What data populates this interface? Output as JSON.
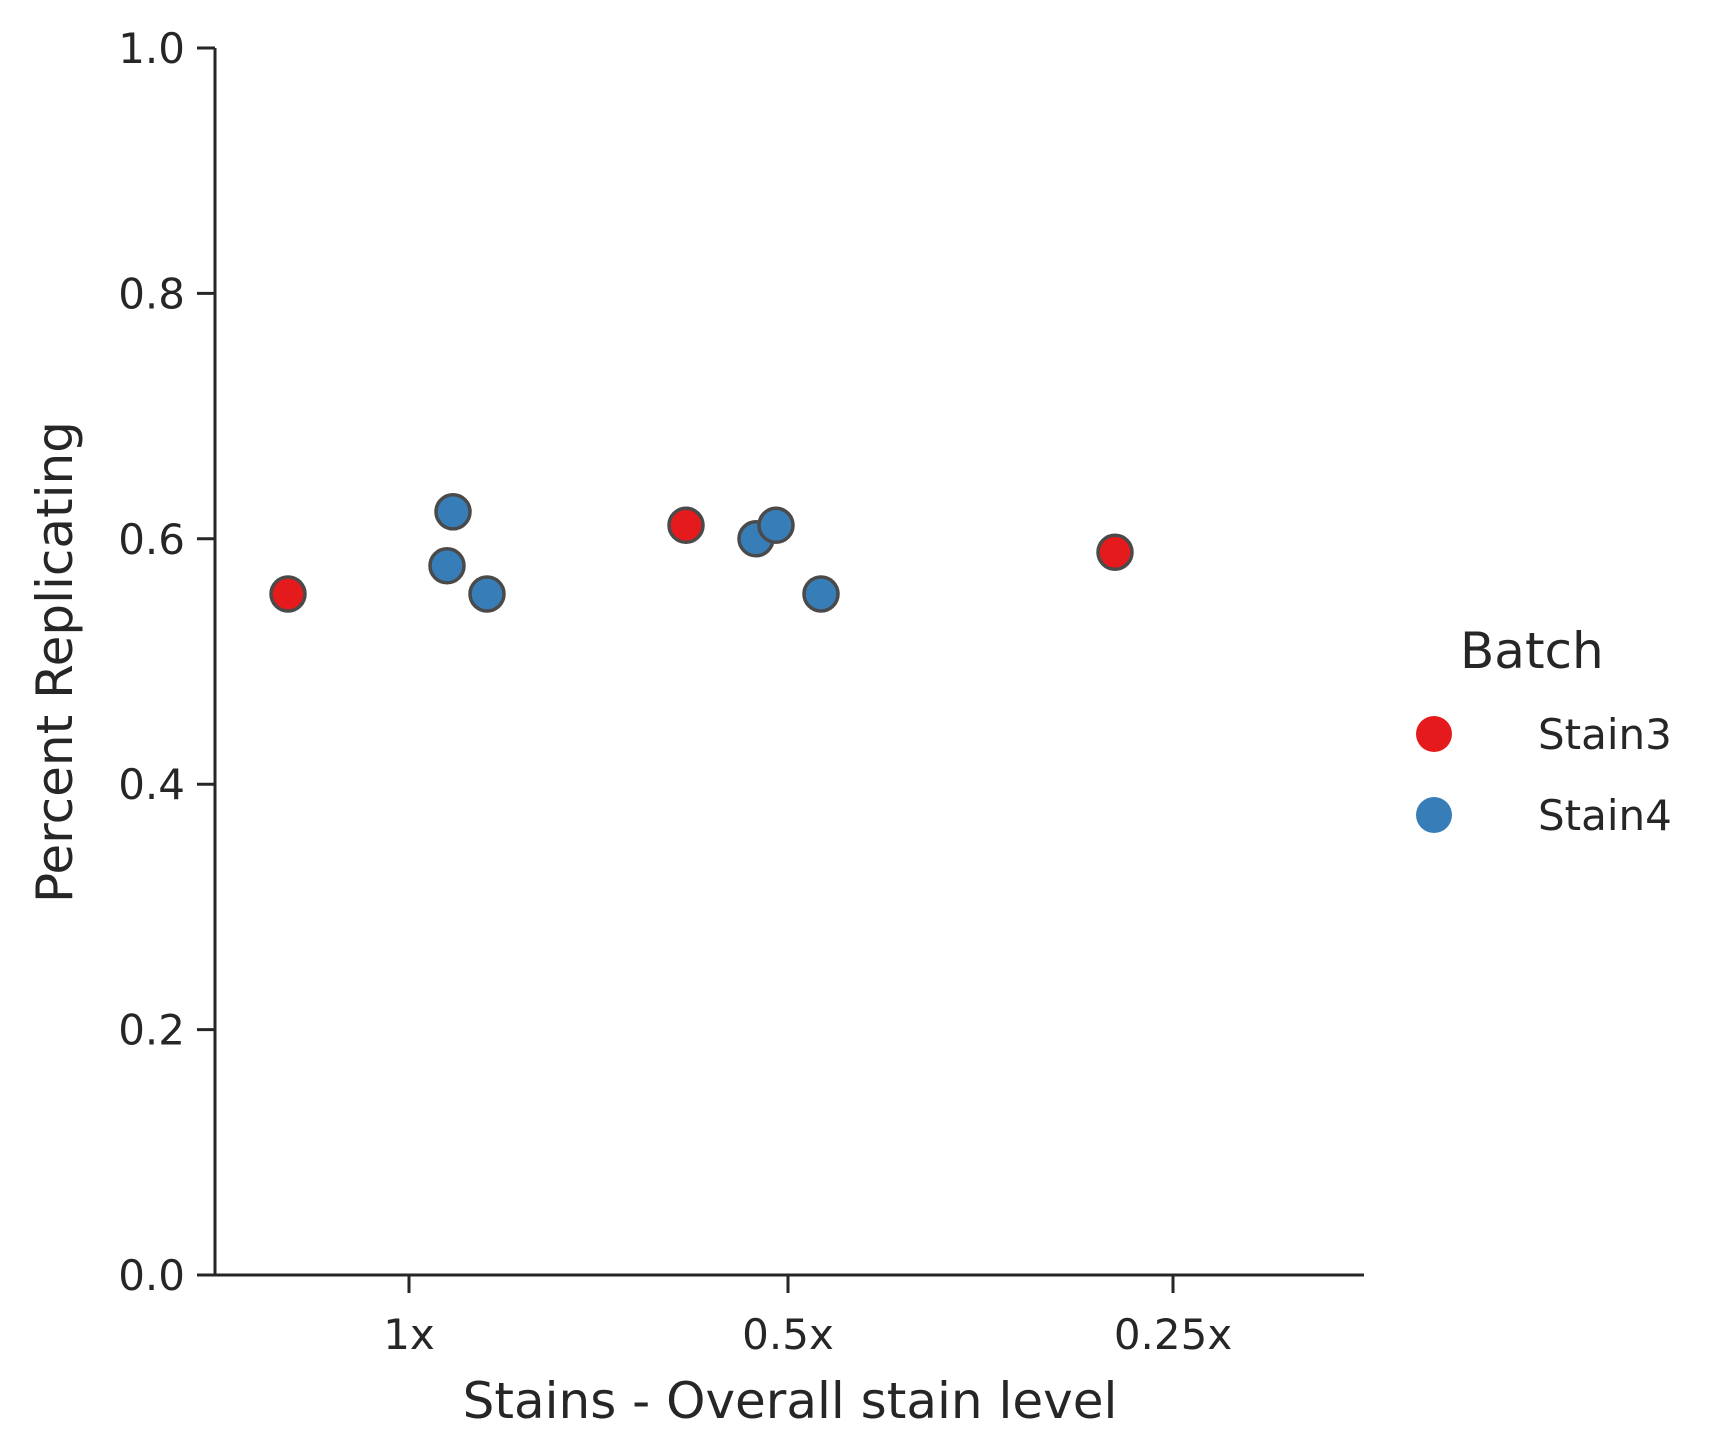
{
  "chart_data": {
    "type": "scatter",
    "title": "",
    "xlabel": "Stains - Overall stain level",
    "ylabel": "Percent Replicating",
    "categories": [
      "1x",
      "0.5x",
      "0.25x"
    ],
    "yticks": [
      "0.0",
      "0.2",
      "0.4",
      "0.6",
      "0.8",
      "1.0"
    ],
    "ylim": [
      0,
      1
    ],
    "grid": false,
    "legend": {
      "title": "Batch",
      "placement": "right",
      "entries": [
        "Stain3",
        "Stain4"
      ]
    },
    "series": [
      {
        "name": "Stain3",
        "color": "#e41a1c",
        "points": [
          {
            "category": "1x",
            "y": 0.555
          },
          {
            "category": "0.5x",
            "y": 0.611
          },
          {
            "category": "0.25x",
            "y": 0.589
          }
        ]
      },
      {
        "name": "Stain4",
        "color": "#377eb8",
        "points": [
          {
            "category": "1x",
            "y": 0.622
          },
          {
            "category": "1x",
            "y": 0.578
          },
          {
            "category": "1x",
            "y": 0.555
          },
          {
            "category": "0.5x",
            "y": 0.6
          },
          {
            "category": "0.5x",
            "y": 0.611
          },
          {
            "category": "0.5x",
            "y": 0.555
          }
        ]
      }
    ]
  }
}
